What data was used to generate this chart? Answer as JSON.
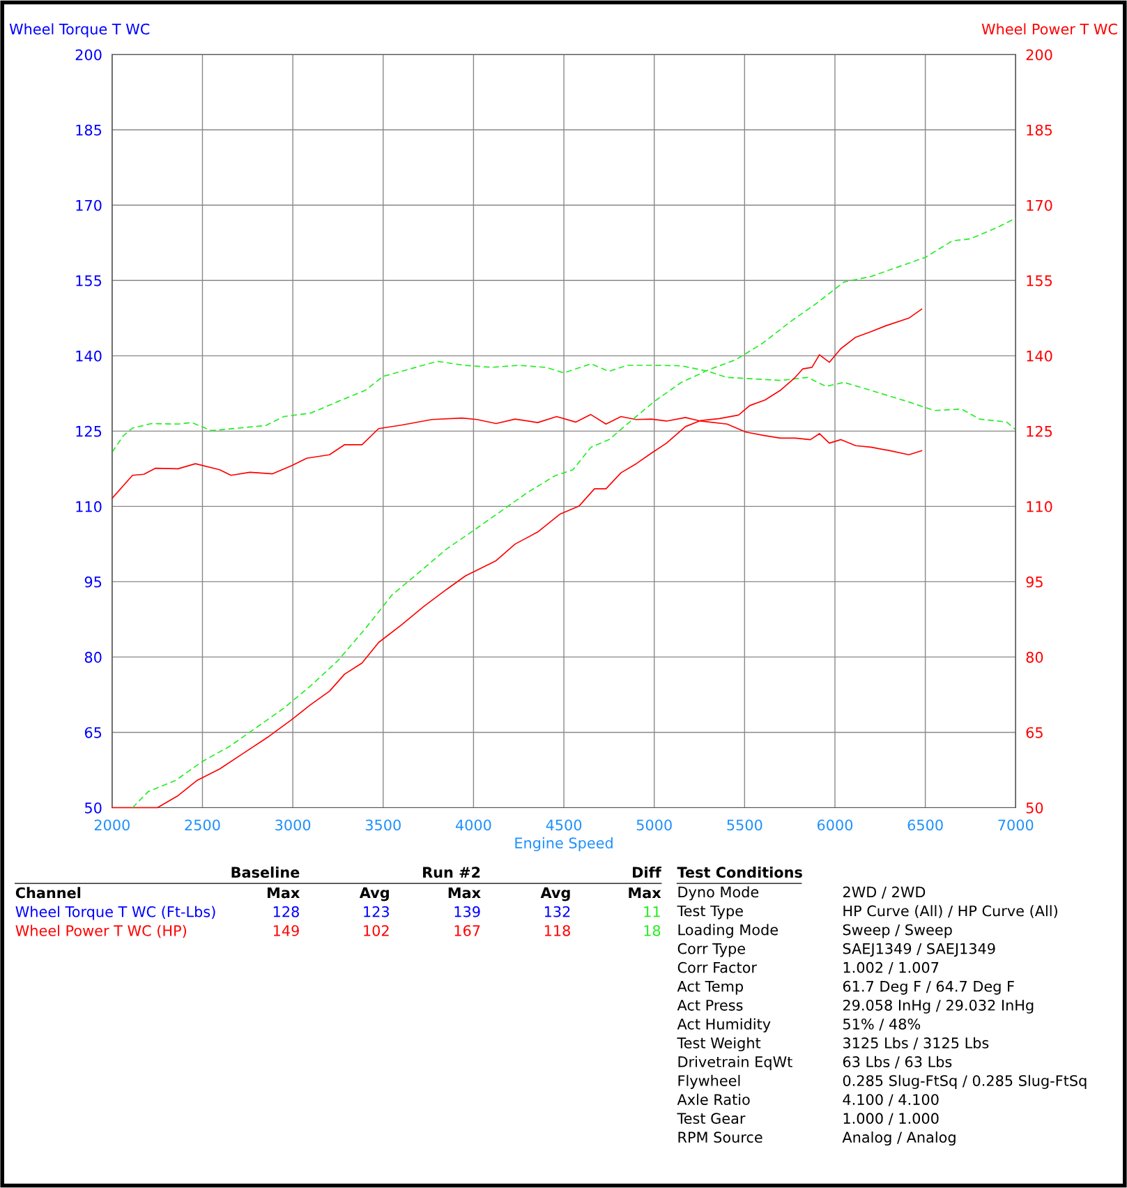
{
  "chart_data": {
    "type": "line",
    "xlabel": "Engine Speed",
    "ylabel": "Wheel Torque T WC",
    "y2label": "Wheel Power T WC",
    "xlim": [
      2000,
      7000
    ],
    "xticks": [
      2000,
      2500,
      3000,
      3500,
      4000,
      4500,
      5000,
      5500,
      6000,
      6500,
      7000
    ],
    "ylim": [
      50,
      200
    ],
    "yticks": [
      50,
      65,
      80,
      95,
      110,
      125,
      140,
      155,
      170,
      185,
      200
    ],
    "y2lim": [
      50,
      200
    ],
    "y2ticks": [
      50,
      65,
      80,
      95,
      110,
      125,
      140,
      155,
      170,
      185,
      200
    ],
    "grid": true,
    "legend": false,
    "marker": "none",
    "series": [
      {
        "color": "#ff0000",
        "line_style": "solid",
        "x": [
          2000,
          2113,
          2176,
          2239,
          2365,
          2461,
          2595,
          2658,
          2763,
          2888,
          2993,
          3077,
          3203,
          3287,
          3383,
          3475,
          3601,
          3769,
          3936,
          4020,
          4125,
          4230,
          4355,
          4460,
          4565,
          4649,
          4733,
          4816,
          4900,
          4984,
          5068,
          5173,
          5256,
          5403,
          5507,
          5613,
          5697,
          5780,
          5864,
          5914,
          5969,
          6032,
          6115,
          6199,
          6304,
          6409,
          6480
        ],
        "values": [
          111.6,
          116.2,
          116.4,
          117.6,
          117.5,
          118.5,
          117.3,
          116.2,
          116.8,
          116.5,
          118.1,
          119.6,
          120.3,
          122.3,
          122.3,
          125.5,
          126.2,
          127.3,
          127.6,
          127.3,
          126.5,
          127.4,
          126.7,
          127.9,
          126.8,
          128.3,
          126.4,
          127.9,
          127.3,
          127.4,
          127.0,
          127.7,
          127.0,
          126.4,
          124.8,
          124.1,
          123.6,
          123.6,
          123.3,
          124.5,
          122.6,
          123.3,
          122.1,
          121.8,
          121.1,
          120.3,
          121.1
        ]
      },
      {
        "color": "#ff0000",
        "line_style": "solid",
        "axis": "y2",
        "x": [
          2000,
          2251,
          2365,
          2469,
          2595,
          2721,
          2868,
          2993,
          3098,
          3203,
          3287,
          3383,
          3475,
          3601,
          3726,
          3852,
          3957,
          4125,
          4230,
          4355,
          4480,
          4585,
          4669,
          4733,
          4816,
          4900,
          4984,
          5068,
          5173,
          5256,
          5361,
          5466,
          5529,
          5613,
          5697,
          5780,
          5822,
          5873,
          5914,
          5969,
          6032,
          6115,
          6199,
          6283,
          6409,
          6480
        ],
        "values": [
          50,
          50,
          52.4,
          55.4,
          57.7,
          60.7,
          64.2,
          67.5,
          70.5,
          73.2,
          76.6,
          78.8,
          82.9,
          86.4,
          90.1,
          93.5,
          96.2,
          99.2,
          102.5,
          104.9,
          108.5,
          110.1,
          113.5,
          113.5,
          116.7,
          118.5,
          120.6,
          122.6,
          125.9,
          127.1,
          127.5,
          128.2,
          130.1,
          131.2,
          133.1,
          135.7,
          137.4,
          137.7,
          140.2,
          138.7,
          141.4,
          143.7,
          144.8,
          146.0,
          147.5,
          149.3
        ]
      },
      {
        "color": "#22ee22",
        "line_style": "dashed",
        "x": [
          2000,
          2063,
          2113,
          2218,
          2365,
          2440,
          2550,
          2700,
          2850,
          2950,
          3100,
          3250,
          3400,
          3500,
          3650,
          3800,
          3950,
          4100,
          4250,
          4400,
          4500,
          4650,
          4750,
          4850,
          5000,
          5150,
          5300,
          5400,
          5550,
          5700,
          5850,
          5950,
          6050,
          6200,
          6400,
          6550,
          6700,
          6800,
          6950,
          7000
        ],
        "values": [
          120.8,
          124.1,
          125.6,
          126.5,
          126.4,
          126.7,
          125.1,
          125.6,
          126.1,
          127.9,
          128.6,
          130.9,
          133.1,
          135.9,
          137.4,
          138.9,
          138.1,
          137.7,
          138.1,
          137.7,
          136.6,
          138.4,
          136.9,
          138.1,
          138.1,
          138.0,
          136.9,
          135.7,
          135.4,
          135.1,
          135.7,
          133.9,
          134.7,
          133.1,
          130.9,
          129.1,
          129.4,
          127.4,
          126.8,
          125.3
        ]
      },
      {
        "color": "#22ee22",
        "line_style": "dashed",
        "axis": "y2",
        "x": [
          2113,
          2200,
          2350,
          2500,
          2650,
          2800,
          2950,
          3100,
          3250,
          3400,
          3550,
          3700,
          3850,
          4000,
          4150,
          4300,
          4450,
          4550,
          4650,
          4750,
          4850,
          5000,
          5150,
          5300,
          5450,
          5600,
          5750,
          5900,
          6050,
          6200,
          6350,
          6500,
          6650,
          6750,
          6900,
          7000
        ],
        "values": [
          50,
          53.2,
          55.4,
          59.2,
          62.2,
          66.0,
          69.8,
          74.3,
          79.3,
          85.6,
          92.4,
          96.9,
          101.5,
          105.2,
          109.0,
          112.8,
          116.1,
          117.3,
          121.8,
          123.3,
          126.4,
          130.9,
          134.7,
          137.2,
          139.2,
          142.5,
          146.7,
          150.5,
          154.7,
          155.8,
          157.7,
          159.6,
          162.9,
          163.3,
          165.6,
          167.4
        ]
      }
    ],
    "annotations": [
      "Baseline",
      "Run #2",
      "Diff",
      "Channel",
      "Max",
      "Avg",
      "Max",
      "Avg",
      "Max",
      "Wheel Torque T WC (Ft-Lbs)",
      "128",
      "123",
      "139",
      "132",
      "11",
      "Wheel Power T WC (HP)",
      "149",
      "102",
      "167",
      "118",
      "18",
      "Test Conditions",
      "Dyno Mode",
      "2WD / 2WD",
      "Test Type",
      "HP Curve (All) / HP Curve (All)",
      "Loading Mode",
      "Sweep / Sweep",
      "Corr Type",
      "SAEJ1349 / SAEJ1349",
      "Corr Factor",
      "1.002 / 1.007",
      "Act Temp",
      "61.7 Deg F / 64.7 Deg F",
      "Act Press",
      "29.058 InHg / 29.032 InHg",
      "Act Humidity",
      "51% / 48%",
      "Test Weight",
      "3125 Lbs / 3125 Lbs",
      "Drivetrain EqWt",
      "63 Lbs / 63 Lbs",
      "Flywheel",
      "0.285 Slug-FtSq / 0.285 Slug-FtSq",
      "Axle Ratio",
      "4.100 / 4.100",
      "Test Gear",
      "1.000 / 1.000",
      "RPM Source",
      "Analog / Analog"
    ]
  }
}
